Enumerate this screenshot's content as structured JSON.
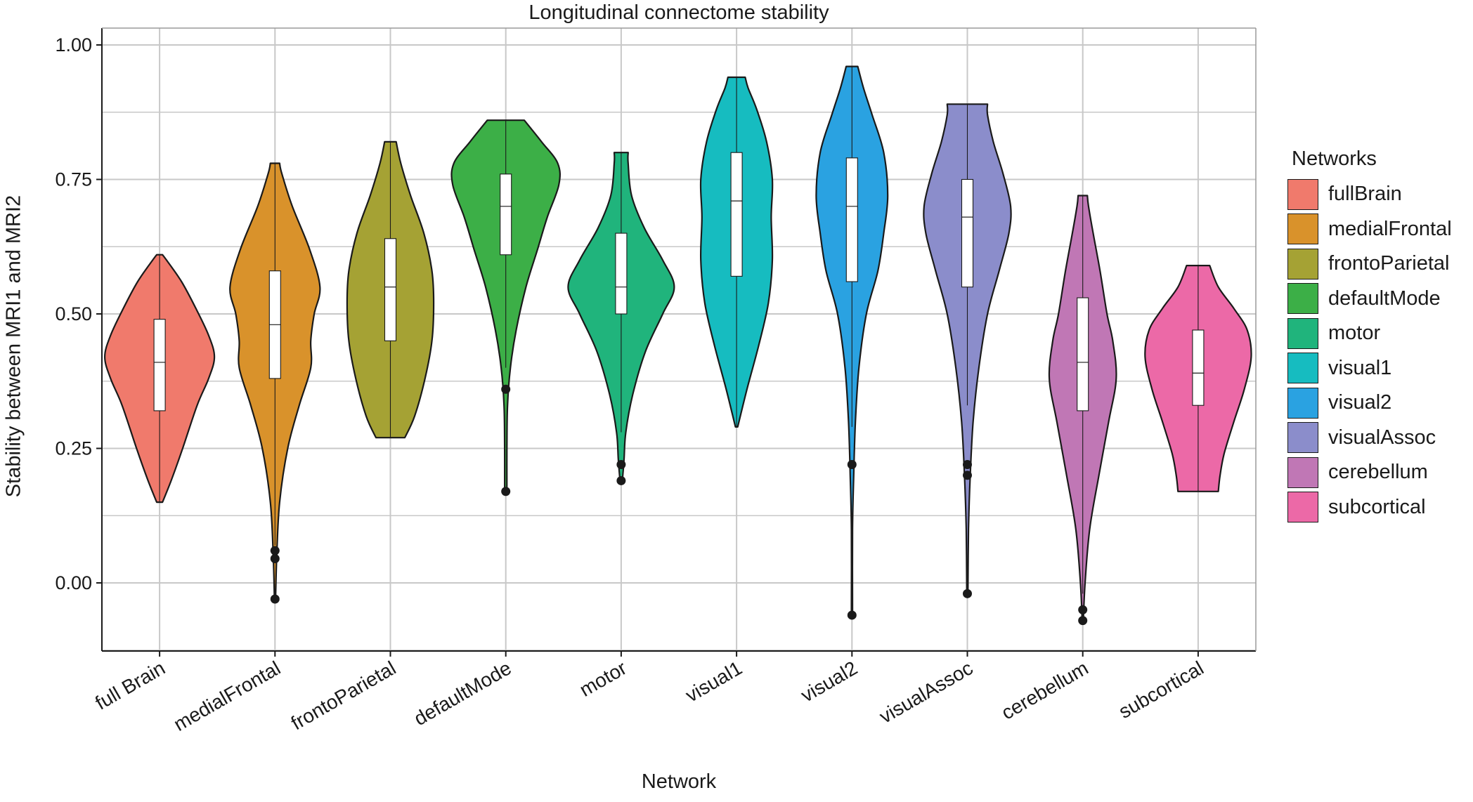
{
  "chart_data": {
    "type": "violin",
    "title": "Longitudinal connectome stability",
    "xlabel": "Network",
    "ylabel": "Stability between MRI1 and MRI2",
    "ylim": [
      -0.13,
      1.02
    ],
    "yticks": [
      0.0,
      0.25,
      0.5,
      0.75,
      1.0
    ],
    "ytick_labels": [
      "0.00",
      "0.25",
      "0.50",
      "0.75",
      "1.00"
    ],
    "grid": true,
    "legend": {
      "title": "Networks",
      "position": "right"
    },
    "series": [
      {
        "category": "full Brain",
        "legend": "fullBrain",
        "color": "#F07A6C",
        "min": 0.15,
        "max": 0.61,
        "q1": 0.32,
        "median": 0.41,
        "q3": 0.49,
        "whisker_low": 0.15,
        "whisker_high": 0.61,
        "outliers": [],
        "density": [
          [
            0.15,
            0.05
          ],
          [
            0.19,
            0.2
          ],
          [
            0.25,
            0.4
          ],
          [
            0.33,
            0.65
          ],
          [
            0.38,
            0.85
          ],
          [
            0.42,
            0.95
          ],
          [
            0.46,
            0.85
          ],
          [
            0.51,
            0.63
          ],
          [
            0.56,
            0.38
          ],
          [
            0.6,
            0.12
          ],
          [
            0.61,
            0.05
          ]
        ]
      },
      {
        "category": "medialFrontal",
        "legend": "medialFrontal",
        "color": "#D9922B",
        "min": -0.03,
        "max": 0.78,
        "q1": 0.38,
        "median": 0.48,
        "q3": 0.58,
        "whisker_low": 0.07,
        "whisker_high": 0.78,
        "outliers": [
          0.06,
          0.045,
          -0.03
        ],
        "density": [
          [
            -0.03,
            0.01
          ],
          [
            0.05,
            0.03
          ],
          [
            0.15,
            0.08
          ],
          [
            0.25,
            0.22
          ],
          [
            0.33,
            0.42
          ],
          [
            0.4,
            0.62
          ],
          [
            0.45,
            0.62
          ],
          [
            0.5,
            0.68
          ],
          [
            0.55,
            0.78
          ],
          [
            0.62,
            0.6
          ],
          [
            0.7,
            0.3
          ],
          [
            0.76,
            0.12
          ],
          [
            0.78,
            0.08
          ]
        ]
      },
      {
        "category": "frontoParietal",
        "legend": "frontoParietal",
        "color": "#A5A234",
        "min": 0.27,
        "max": 0.82,
        "q1": 0.45,
        "median": 0.55,
        "q3": 0.64,
        "whisker_low": 0.27,
        "whisker_high": 0.82,
        "outliers": [],
        "density": [
          [
            0.27,
            0.25
          ],
          [
            0.31,
            0.42
          ],
          [
            0.38,
            0.6
          ],
          [
            0.45,
            0.72
          ],
          [
            0.52,
            0.75
          ],
          [
            0.58,
            0.72
          ],
          [
            0.65,
            0.58
          ],
          [
            0.72,
            0.35
          ],
          [
            0.78,
            0.18
          ],
          [
            0.82,
            0.1
          ]
        ]
      },
      {
        "category": "defaultMode",
        "legend": "defaultMode",
        "color": "#3CAF47",
        "min": 0.17,
        "max": 0.86,
        "q1": 0.61,
        "median": 0.7,
        "q3": 0.76,
        "whisker_low": 0.4,
        "whisker_high": 0.86,
        "outliers": [
          0.36,
          0.17
        ],
        "density": [
          [
            0.17,
            0.02
          ],
          [
            0.25,
            0.02
          ],
          [
            0.33,
            0.03
          ],
          [
            0.4,
            0.08
          ],
          [
            0.47,
            0.18
          ],
          [
            0.55,
            0.35
          ],
          [
            0.62,
            0.55
          ],
          [
            0.68,
            0.72
          ],
          [
            0.74,
            0.92
          ],
          [
            0.78,
            0.9
          ],
          [
            0.82,
            0.62
          ],
          [
            0.86,
            0.32
          ]
        ]
      },
      {
        "category": "motor",
        "legend": "motor",
        "color": "#20B47C",
        "min": 0.19,
        "max": 0.8,
        "q1": 0.5,
        "median": 0.55,
        "q3": 0.65,
        "whisker_low": 0.28,
        "whisker_high": 0.8,
        "outliers": [
          0.22,
          0.19
        ],
        "density": [
          [
            0.19,
            0.02
          ],
          [
            0.23,
            0.05
          ],
          [
            0.28,
            0.08
          ],
          [
            0.35,
            0.2
          ],
          [
            0.43,
            0.42
          ],
          [
            0.5,
            0.72
          ],
          [
            0.55,
            0.92
          ],
          [
            0.6,
            0.72
          ],
          [
            0.66,
            0.4
          ],
          [
            0.72,
            0.18
          ],
          [
            0.78,
            0.12
          ],
          [
            0.8,
            0.12
          ]
        ]
      },
      {
        "category": "visual1",
        "legend": "visual1",
        "color": "#16BCC0",
        "min": 0.29,
        "max": 0.94,
        "q1": 0.57,
        "median": 0.71,
        "q3": 0.8,
        "whisker_low": 0.29,
        "whisker_high": 0.94,
        "outliers": [],
        "density": [
          [
            0.29,
            0.02
          ],
          [
            0.36,
            0.18
          ],
          [
            0.44,
            0.38
          ],
          [
            0.52,
            0.55
          ],
          [
            0.6,
            0.62
          ],
          [
            0.68,
            0.6
          ],
          [
            0.75,
            0.62
          ],
          [
            0.82,
            0.52
          ],
          [
            0.88,
            0.35
          ],
          [
            0.92,
            0.2
          ],
          [
            0.94,
            0.15
          ]
        ]
      },
      {
        "category": "visual2",
        "legend": "visual2",
        "color": "#2AA2E1",
        "min": -0.06,
        "max": 0.96,
        "q1": 0.56,
        "median": 0.7,
        "q3": 0.79,
        "whisker_low": 0.29,
        "whisker_high": 0.96,
        "outliers": [
          0.22,
          -0.06
        ],
        "density": [
          [
            -0.06,
            0.01
          ],
          [
            0.1,
            0.01
          ],
          [
            0.2,
            0.03
          ],
          [
            0.3,
            0.06
          ],
          [
            0.4,
            0.12
          ],
          [
            0.5,
            0.25
          ],
          [
            0.58,
            0.45
          ],
          [
            0.65,
            0.55
          ],
          [
            0.72,
            0.62
          ],
          [
            0.8,
            0.55
          ],
          [
            0.87,
            0.35
          ],
          [
            0.92,
            0.2
          ],
          [
            0.96,
            0.1
          ]
        ]
      },
      {
        "category": "visualAssoc",
        "legend": "visualAssoc",
        "color": "#8B8DCB",
        "min": -0.02,
        "max": 0.89,
        "q1": 0.55,
        "median": 0.68,
        "q3": 0.75,
        "whisker_low": 0.33,
        "whisker_high": 0.89,
        "outliers": [
          0.22,
          0.2,
          -0.02
        ],
        "density": [
          [
            -0.02,
            0.01
          ],
          [
            0.1,
            0.02
          ],
          [
            0.2,
            0.05
          ],
          [
            0.3,
            0.1
          ],
          [
            0.4,
            0.2
          ],
          [
            0.5,
            0.35
          ],
          [
            0.58,
            0.55
          ],
          [
            0.65,
            0.72
          ],
          [
            0.7,
            0.75
          ],
          [
            0.76,
            0.62
          ],
          [
            0.82,
            0.45
          ],
          [
            0.87,
            0.35
          ],
          [
            0.89,
            0.35
          ]
        ]
      },
      {
        "category": "cerebellum",
        "legend": "cerebellum",
        "color": "#C077B5",
        "min": -0.07,
        "max": 0.72,
        "q1": 0.32,
        "median": 0.41,
        "q3": 0.53,
        "whisker_low": -0.02,
        "whisker_high": 0.72,
        "outliers": [
          -0.05,
          -0.07
        ],
        "density": [
          [
            -0.07,
            0.01
          ],
          [
            0.0,
            0.04
          ],
          [
            0.1,
            0.12
          ],
          [
            0.2,
            0.28
          ],
          [
            0.3,
            0.45
          ],
          [
            0.38,
            0.58
          ],
          [
            0.45,
            0.52
          ],
          [
            0.5,
            0.42
          ],
          [
            0.58,
            0.3
          ],
          [
            0.65,
            0.18
          ],
          [
            0.7,
            0.1
          ],
          [
            0.72,
            0.08
          ]
        ]
      },
      {
        "category": "subcortical",
        "legend": "subcortical",
        "color": "#EC69A7",
        "min": 0.17,
        "max": 0.59,
        "q1": 0.33,
        "median": 0.39,
        "q3": 0.47,
        "whisker_low": 0.17,
        "whisker_high": 0.59,
        "outliers": [],
        "density": [
          [
            0.17,
            0.35
          ],
          [
            0.2,
            0.38
          ],
          [
            0.24,
            0.45
          ],
          [
            0.3,
            0.62
          ],
          [
            0.36,
            0.8
          ],
          [
            0.42,
            0.92
          ],
          [
            0.47,
            0.85
          ],
          [
            0.51,
            0.62
          ],
          [
            0.55,
            0.35
          ],
          [
            0.59,
            0.2
          ]
        ]
      }
    ]
  }
}
